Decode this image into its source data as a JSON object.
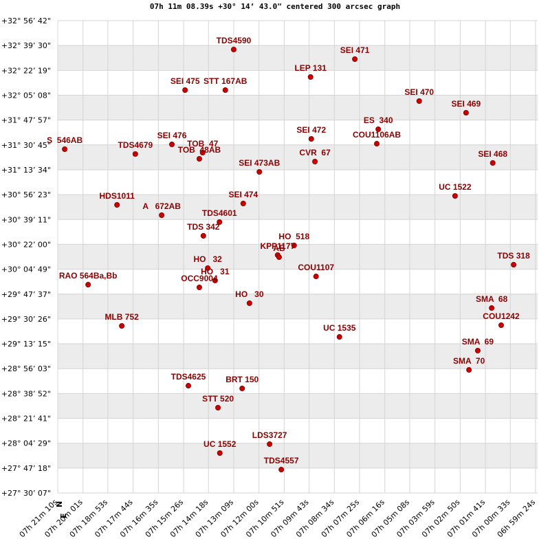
{
  "chart_data": {
    "type": "scatter",
    "title": "07h 11m 08.39s +30° 14’ 43.0\" centered 300 arcsec graph",
    "compass": {
      "north": "N",
      "east": "E"
    },
    "color": "#cc0000",
    "label_color": "#8b0000",
    "grid": true,
    "bands": true,
    "labels": [
      "TDS4590",
      "SEI 471",
      "LEP 131",
      "SEI 475",
      "STT 167AB",
      "SEI 470",
      "SEI 469",
      "ES  340",
      "COU1106AB",
      "SEI 472",
      "S  546AB",
      "TDS4679",
      "SEI 476",
      "TOB  47",
      "TOB  48AB",
      "CVR  67",
      "SEI 473AB",
      "SEI 468",
      "UC 1522",
      "HDS1011",
      "A   672AB",
      "SEI 474",
      "TDS4601",
      "TDS 342",
      "HO  518",
      "KPP1177",
      "AB",
      "HO   32",
      "HO   31",
      "TDS 318",
      "RAO 564Ba,Bb",
      "OCC9004",
      "COU1107",
      "HO   30",
      "SMA  68",
      "MLB 752",
      "COU1242",
      "UC 1535",
      "SMA  69",
      "SMA  70",
      "TDS4625",
      "BRT 150",
      "STT 520",
      "UC 1552",
      "LDS3727",
      "TDS4557"
    ],
    "x": [
      25989,
      25658,
      25779,
      26122,
      26012,
      25482,
      25354,
      25594,
      25598,
      25777,
      26451,
      26258,
      26158,
      26074,
      26083,
      25767,
      25919,
      25281,
      25384,
      26308,
      26186,
      25963,
      26028,
      26072,
      25824,
      25869,
      25865,
      26060,
      26040,
      25224,
      26387,
      26083,
      25764,
      25946,
      25284,
      26295,
      25258,
      25700,
      25322,
      25346,
      26113,
      25966,
      26032,
      26027,
      25891,
      25859
    ],
    "y": [
      117404,
      117005,
      116263,
      115721,
      115721,
      115265,
      114780,
      114095,
      113496,
      113696,
      113268,
      113069,
      113468,
      113126,
      112869,
      112755,
      112327,
      112698,
      111329,
      110958,
      110530,
      111015,
      110245,
      109674,
      109275,
      108876,
      108790,
      108334,
      107820,
      108476,
      107649,
      107535,
      107991,
      106879,
      106679,
      105938,
      105966,
      105481,
      104911,
      104112,
      103456,
      103342,
      102544,
      100661,
      101032,
      99976
    ],
    "xlim": [
      26470,
      25164
    ],
    "xticks": [
      {
        "value": 26470,
        "label": "07h 21m 10s"
      },
      {
        "value": 26401,
        "label": "07h 20m 01s"
      },
      {
        "value": 26333,
        "label": "07h 18m 53s"
      },
      {
        "value": 26264,
        "label": "07h 17m 44s"
      },
      {
        "value": 26195,
        "label": "07h 16m 35s"
      },
      {
        "value": 26126,
        "label": "07h 15m 26s"
      },
      {
        "value": 26058,
        "label": "07h 14m 18s"
      },
      {
        "value": 25989,
        "label": "07h 13m 09s"
      },
      {
        "value": 25920,
        "label": "07h 12m 00s"
      },
      {
        "value": 25851,
        "label": "07h 10m 51s"
      },
      {
        "value": 25783,
        "label": "07h 09m 43s"
      },
      {
        "value": 25714,
        "label": "07h 08m 34s"
      },
      {
        "value": 25645,
        "label": "07h 07m 25s"
      },
      {
        "value": 25576,
        "label": "07h 06m 16s"
      },
      {
        "value": 25508,
        "label": "07h 05m 08s"
      },
      {
        "value": 25439,
        "label": "07h 03m 59s"
      },
      {
        "value": 25370,
        "label": "07h 02m 50s"
      },
      {
        "value": 25301,
        "label": "07h 01m 41s"
      },
      {
        "value": 25233,
        "label": "07h 00m 33s"
      },
      {
        "value": 25164,
        "label": "06h 59m 24s"
      }
    ],
    "ylim": [
      99007,
      118602
    ],
    "yticks": [
      {
        "value": 118602,
        "label": "+32° 56’ 42\""
      },
      {
        "value": 117570,
        "label": "+32° 39’ 30\""
      },
      {
        "value": 116539,
        "label": "+32° 22’ 19\""
      },
      {
        "value": 115508,
        "label": "+32° 05’ 08\""
      },
      {
        "value": 114477,
        "label": "+31° 47’ 57\""
      },
      {
        "value": 113445,
        "label": "+31° 30’ 45\""
      },
      {
        "value": 112414,
        "label": "+31° 13’ 34\""
      },
      {
        "value": 111383,
        "label": "+30° 56’ 23\""
      },
      {
        "value": 110351,
        "label": "+30° 39’ 11\""
      },
      {
        "value": 109320,
        "label": "+30° 22’ 00\""
      },
      {
        "value": 108289,
        "label": "+30° 04’ 49\""
      },
      {
        "value": 107257,
        "label": "+29° 47’ 37\""
      },
      {
        "value": 106226,
        "label": "+29° 30’ 26\""
      },
      {
        "value": 105195,
        "label": "+29° 13’ 15\""
      },
      {
        "value": 104163,
        "label": "+28° 56’ 03\""
      },
      {
        "value": 103132,
        "label": "+28° 38’ 52\""
      },
      {
        "value": 102101,
        "label": "+28° 21’ 41\""
      },
      {
        "value": 101069,
        "label": "+28° 04’ 29\""
      },
      {
        "value": 100038,
        "label": "+27° 47’ 18\""
      },
      {
        "value": 99007,
        "label": "+27° 30’ 07\""
      }
    ]
  }
}
